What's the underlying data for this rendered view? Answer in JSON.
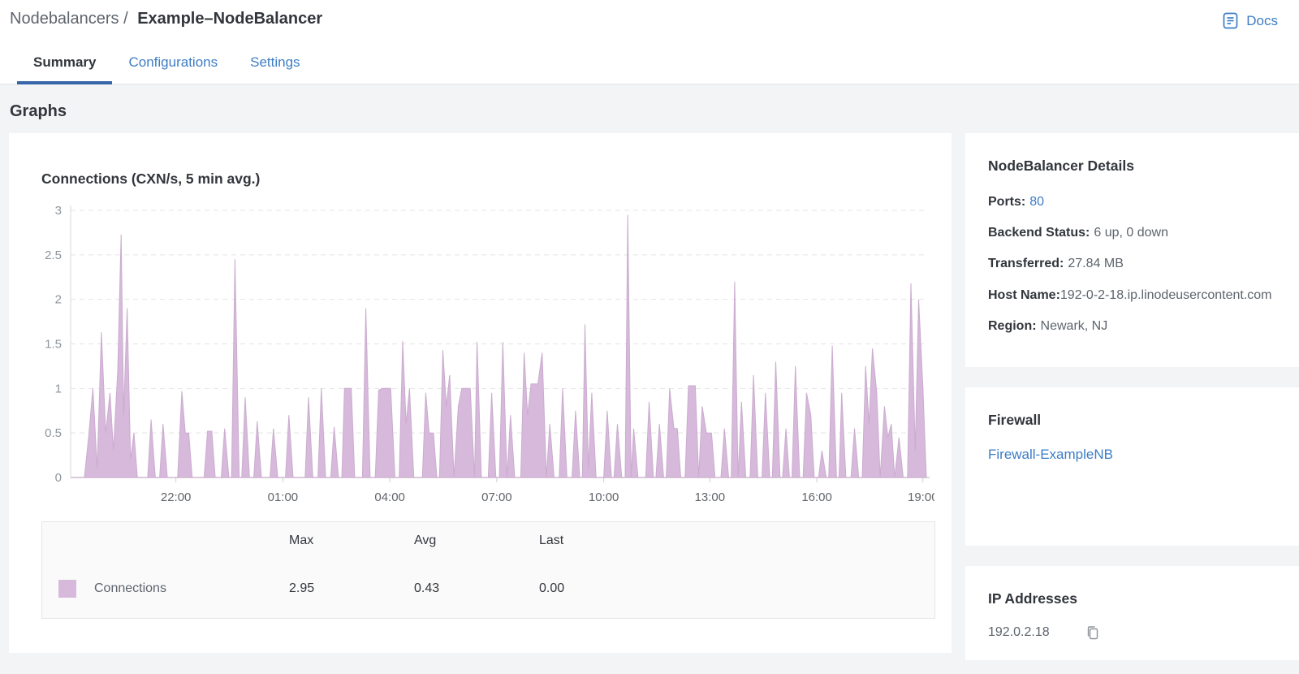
{
  "header": {
    "breadcrumb": {
      "section": "Nodebalancers /",
      "current": "Example–NodeBalancer"
    },
    "docs": {
      "label": "Docs"
    },
    "tabs": [
      {
        "label": "Summary",
        "active": true
      },
      {
        "label": "Configurations",
        "active": false
      },
      {
        "label": "Settings",
        "active": false
      }
    ]
  },
  "page": {
    "section_title": "Graphs"
  },
  "chart_data": {
    "type": "area",
    "title": "Connections (CXN/s, 5 min avg.)",
    "series_name": "Connections",
    "color": "#d6b9db",
    "stroke": "#cbaccf",
    "grid": "dashed-horizontal",
    "legend_position": "bottom-table",
    "ylim": [
      0,
      3
    ],
    "y_ticks": [
      "0",
      "0.5",
      "1",
      "1.5",
      "2",
      "2.5",
      "3"
    ],
    "x_ticks": [
      {
        "label": "22:00",
        "f": 0.123
      },
      {
        "label": "01:00",
        "f": 0.248
      },
      {
        "label": "04:00",
        "f": 0.373
      },
      {
        "label": "07:00",
        "f": 0.498
      },
      {
        "label": "10:00",
        "f": 0.623
      },
      {
        "label": "13:00",
        "f": 0.747
      },
      {
        "label": "16:00",
        "f": 0.872
      },
      {
        "label": "19:00",
        "f": 0.996
      }
    ],
    "stats": {
      "max": 2.95,
      "avg": 0.43,
      "last": 0.0
    },
    "points": [
      [
        0,
        0
      ],
      [
        0.016,
        0
      ],
      [
        0.021,
        0.45
      ],
      [
        0.026,
        1.0
      ],
      [
        0.031,
        0.1
      ],
      [
        0.036,
        1.63
      ],
      [
        0.041,
        0.5
      ],
      [
        0.046,
        0.95
      ],
      [
        0.05,
        0.3
      ],
      [
        0.055,
        1.2
      ],
      [
        0.059,
        2.73
      ],
      [
        0.062,
        0.7
      ],
      [
        0.066,
        1.9
      ],
      [
        0.07,
        0.2
      ],
      [
        0.074,
        0.5
      ],
      [
        0.078,
        0
      ],
      [
        0.09,
        0
      ],
      [
        0.094,
        0.65
      ],
      [
        0.099,
        0
      ],
      [
        0.104,
        0
      ],
      [
        0.108,
        0.6
      ],
      [
        0.113,
        0
      ],
      [
        0.125,
        0
      ],
      [
        0.13,
        0.97
      ],
      [
        0.134,
        0.5
      ],
      [
        0.138,
        0.5
      ],
      [
        0.142,
        0
      ],
      [
        0.156,
        0
      ],
      [
        0.16,
        0.52
      ],
      [
        0.165,
        0.52
      ],
      [
        0.169,
        0
      ],
      [
        0.176,
        0
      ],
      [
        0.18,
        0.55
      ],
      [
        0.185,
        0
      ],
      [
        0.188,
        0
      ],
      [
        0.192,
        2.45
      ],
      [
        0.197,
        0
      ],
      [
        0.2,
        0
      ],
      [
        0.204,
        0.9
      ],
      [
        0.209,
        0
      ],
      [
        0.214,
        0
      ],
      [
        0.218,
        0.63
      ],
      [
        0.223,
        0
      ],
      [
        0.233,
        0
      ],
      [
        0.237,
        0.55
      ],
      [
        0.242,
        0
      ],
      [
        0.251,
        0
      ],
      [
        0.255,
        0.7
      ],
      [
        0.26,
        0
      ],
      [
        0.274,
        0
      ],
      [
        0.278,
        0.9
      ],
      [
        0.283,
        0
      ],
      [
        0.289,
        0
      ],
      [
        0.293,
        1.0
      ],
      [
        0.298,
        0
      ],
      [
        0.304,
        0
      ],
      [
        0.308,
        0.57
      ],
      [
        0.313,
        0
      ],
      [
        0.317,
        0
      ],
      [
        0.32,
        1.0
      ],
      [
        0.328,
        1.0
      ],
      [
        0.332,
        0
      ],
      [
        0.341,
        0
      ],
      [
        0.345,
        1.9
      ],
      [
        0.35,
        0
      ],
      [
        0.356,
        0
      ],
      [
        0.36,
        0.98
      ],
      [
        0.364,
        1.0
      ],
      [
        0.374,
        1.0
      ],
      [
        0.379,
        0
      ],
      [
        0.384,
        0
      ],
      [
        0.388,
        1.53
      ],
      [
        0.392,
        0.6
      ],
      [
        0.396,
        1.0
      ],
      [
        0.401,
        0
      ],
      [
        0.411,
        0
      ],
      [
        0.415,
        0.95
      ],
      [
        0.419,
        0.5
      ],
      [
        0.424,
        0.5
      ],
      [
        0.428,
        0
      ],
      [
        0.431,
        0
      ],
      [
        0.435,
        1.43
      ],
      [
        0.439,
        0.8
      ],
      [
        0.443,
        1.15
      ],
      [
        0.448,
        0
      ],
      [
        0.453,
        0.8
      ],
      [
        0.457,
        1.0
      ],
      [
        0.467,
        1.0
      ],
      [
        0.472,
        0
      ],
      [
        0.475,
        1.52
      ],
      [
        0.48,
        0
      ],
      [
        0.488,
        0
      ],
      [
        0.492,
        0.95
      ],
      [
        0.497,
        0
      ],
      [
        0.501,
        0
      ],
      [
        0.505,
        1.52
      ],
      [
        0.51,
        0
      ],
      [
        0.514,
        0.7
      ],
      [
        0.519,
        0
      ],
      [
        0.526,
        0
      ],
      [
        0.53,
        1.4
      ],
      [
        0.534,
        0.7
      ],
      [
        0.538,
        1.05
      ],
      [
        0.546,
        1.05
      ],
      [
        0.551,
        1.4
      ],
      [
        0.556,
        0
      ],
      [
        0.56,
        0.6
      ],
      [
        0.565,
        0
      ],
      [
        0.571,
        0
      ],
      [
        0.575,
        1.0
      ],
      [
        0.58,
        0
      ],
      [
        0.586,
        0
      ],
      [
        0.59,
        0.75
      ],
      [
        0.595,
        0
      ],
      [
        0.598,
        0
      ],
      [
        0.601,
        1.72
      ],
      [
        0.605,
        0.1
      ],
      [
        0.609,
        0.95
      ],
      [
        0.614,
        0
      ],
      [
        0.623,
        0
      ],
      [
        0.627,
        0.75
      ],
      [
        0.632,
        0
      ],
      [
        0.635,
        0
      ],
      [
        0.639,
        0.6
      ],
      [
        0.644,
        0
      ],
      [
        0.648,
        0
      ],
      [
        0.651,
        2.95
      ],
      [
        0.655,
        0
      ],
      [
        0.658,
        0.55
      ],
      [
        0.663,
        0
      ],
      [
        0.672,
        0
      ],
      [
        0.676,
        0.85
      ],
      [
        0.681,
        0
      ],
      [
        0.684,
        0
      ],
      [
        0.688,
        0.6
      ],
      [
        0.693,
        0
      ],
      [
        0.696,
        0
      ],
      [
        0.7,
        1.0
      ],
      [
        0.705,
        0.55
      ],
      [
        0.709,
        0.55
      ],
      [
        0.713,
        0
      ],
      [
        0.718,
        0
      ],
      [
        0.722,
        1.03
      ],
      [
        0.73,
        1.03
      ],
      [
        0.734,
        0
      ],
      [
        0.738,
        0.8
      ],
      [
        0.743,
        0.5
      ],
      [
        0.749,
        0.5
      ],
      [
        0.753,
        0
      ],
      [
        0.76,
        0
      ],
      [
        0.764,
        0.55
      ],
      [
        0.769,
        0
      ],
      [
        0.772,
        0
      ],
      [
        0.776,
        2.2
      ],
      [
        0.78,
        0
      ],
      [
        0.784,
        0.85
      ],
      [
        0.789,
        0
      ],
      [
        0.794,
        0
      ],
      [
        0.798,
        1.15
      ],
      [
        0.803,
        0
      ],
      [
        0.808,
        0
      ],
      [
        0.812,
        0.95
      ],
      [
        0.817,
        0
      ],
      [
        0.82,
        0
      ],
      [
        0.824,
        1.3
      ],
      [
        0.829,
        0
      ],
      [
        0.832,
        0
      ],
      [
        0.836,
        0.55
      ],
      [
        0.84,
        0
      ],
      [
        0.843,
        0
      ],
      [
        0.847,
        1.25
      ],
      [
        0.852,
        0
      ],
      [
        0.856,
        0
      ],
      [
        0.86,
        0.95
      ],
      [
        0.865,
        0.7
      ],
      [
        0.869,
        0
      ],
      [
        0.874,
        0
      ],
      [
        0.878,
        0.3
      ],
      [
        0.883,
        0
      ],
      [
        0.886,
        0
      ],
      [
        0.89,
        1.48
      ],
      [
        0.895,
        0
      ],
      [
        0.898,
        0
      ],
      [
        0.901,
        0.95
      ],
      [
        0.906,
        0
      ],
      [
        0.912,
        0
      ],
      [
        0.916,
        0.55
      ],
      [
        0.921,
        0
      ],
      [
        0.925,
        0
      ],
      [
        0.929,
        1.25
      ],
      [
        0.933,
        0.6
      ],
      [
        0.937,
        1.45
      ],
      [
        0.942,
        0.95
      ],
      [
        0.946,
        0
      ],
      [
        0.951,
        0.8
      ],
      [
        0.955,
        0.45
      ],
      [
        0.959,
        0.6
      ],
      [
        0.963,
        0
      ],
      [
        0.968,
        0.45
      ],
      [
        0.973,
        0
      ],
      [
        0.978,
        0
      ],
      [
        0.982,
        2.18
      ],
      [
        0.987,
        0.3
      ],
      [
        0.991,
        2.0
      ],
      [
        0.996,
        1.0
      ],
      [
        1,
        0
      ]
    ]
  },
  "legend": {
    "columns": [
      "Max",
      "Avg",
      "Last"
    ],
    "rows": [
      {
        "label": "Connections",
        "color": "#d6b9db",
        "values": [
          "2.95",
          "0.43",
          "0.00"
        ]
      }
    ]
  },
  "details": {
    "title": "NodeBalancer Details",
    "rows": [
      {
        "label": "Ports:",
        "value": "80"
      },
      {
        "label": "Backend Status:",
        "value": "6 up, 0 down"
      },
      {
        "label": "Transferred:",
        "value": "27.84 MB"
      },
      {
        "label": "Host Name:",
        "value": "192-0-2-18.ip.linodeusercontent.com"
      },
      {
        "label": "Region:",
        "value": "Newark, NJ"
      }
    ]
  },
  "firewall": {
    "title": "Firewall",
    "link": "Firewall-ExampleNB"
  },
  "ip_addresses": {
    "title": "IP Addresses",
    "items": [
      {
        "ip": "192.0.2.18"
      }
    ]
  }
}
